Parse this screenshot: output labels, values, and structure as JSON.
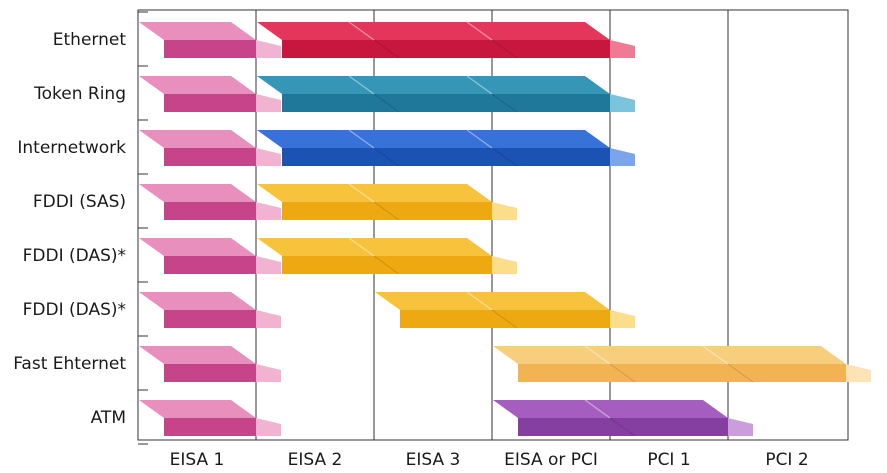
{
  "chart_data": {
    "type": "bar",
    "columns": [
      "EISA 1",
      "EISA 2",
      "EISA 3",
      "EISA or PCI",
      "PCI 1",
      "PCI 2"
    ],
    "rows": [
      {
        "name": "Ethernet",
        "segments": [
          {
            "start": 0,
            "end": 1,
            "color": "pink"
          },
          {
            "start": 1,
            "end": 4,
            "color": "red"
          }
        ]
      },
      {
        "name": "Token Ring",
        "segments": [
          {
            "start": 0,
            "end": 1,
            "color": "pink"
          },
          {
            "start": 1,
            "end": 4,
            "color": "teal"
          }
        ]
      },
      {
        "name": "Internetwork",
        "segments": [
          {
            "start": 0,
            "end": 1,
            "color": "pink"
          },
          {
            "start": 1,
            "end": 4,
            "color": "blue"
          }
        ]
      },
      {
        "name": "FDDI (SAS)",
        "segments": [
          {
            "start": 0,
            "end": 1,
            "color": "pink"
          },
          {
            "start": 1,
            "end": 3,
            "color": "gold"
          }
        ]
      },
      {
        "name": "FDDI (DAS)*",
        "segments": [
          {
            "start": 0,
            "end": 1,
            "color": "pink"
          },
          {
            "start": 1,
            "end": 3,
            "color": "gold"
          }
        ]
      },
      {
        "name": "FDDI (DAS)*",
        "segments": [
          {
            "start": 0,
            "end": 1,
            "color": "pink"
          },
          {
            "start": 2,
            "end": 4,
            "color": "gold"
          }
        ]
      },
      {
        "name": "Fast Ehternet",
        "segments": [
          {
            "start": 0,
            "end": 1,
            "color": "pink"
          },
          {
            "start": 3,
            "end": 6,
            "color": "lightorange"
          }
        ]
      },
      {
        "name": "ATM",
        "segments": [
          {
            "start": 0,
            "end": 1,
            "color": "pink"
          },
          {
            "start": 3,
            "end": 5,
            "color": "purple"
          }
        ]
      }
    ],
    "palette": {
      "pink": {
        "top": "#e98fbd",
        "front": "#c8448a",
        "side": "#f2b3d2"
      },
      "red": {
        "top": "#e3365a",
        "front": "#c7173f",
        "side": "#f07a93"
      },
      "teal": {
        "top": "#3596b8",
        "front": "#1f7799",
        "side": "#7cc4dc"
      },
      "blue": {
        "top": "#3672d8",
        "front": "#1d52b5",
        "side": "#7aa4ec"
      },
      "gold": {
        "top": "#f7c33c",
        "front": "#eea912",
        "side": "#fbdd8a"
      },
      "lightorange": {
        "top": "#f7cd7e",
        "front": "#f2b453",
        "side": "#fbe3b5"
      },
      "purple": {
        "top": "#a55ec0",
        "front": "#843fa1",
        "side": "#cc9ddd"
      }
    }
  }
}
